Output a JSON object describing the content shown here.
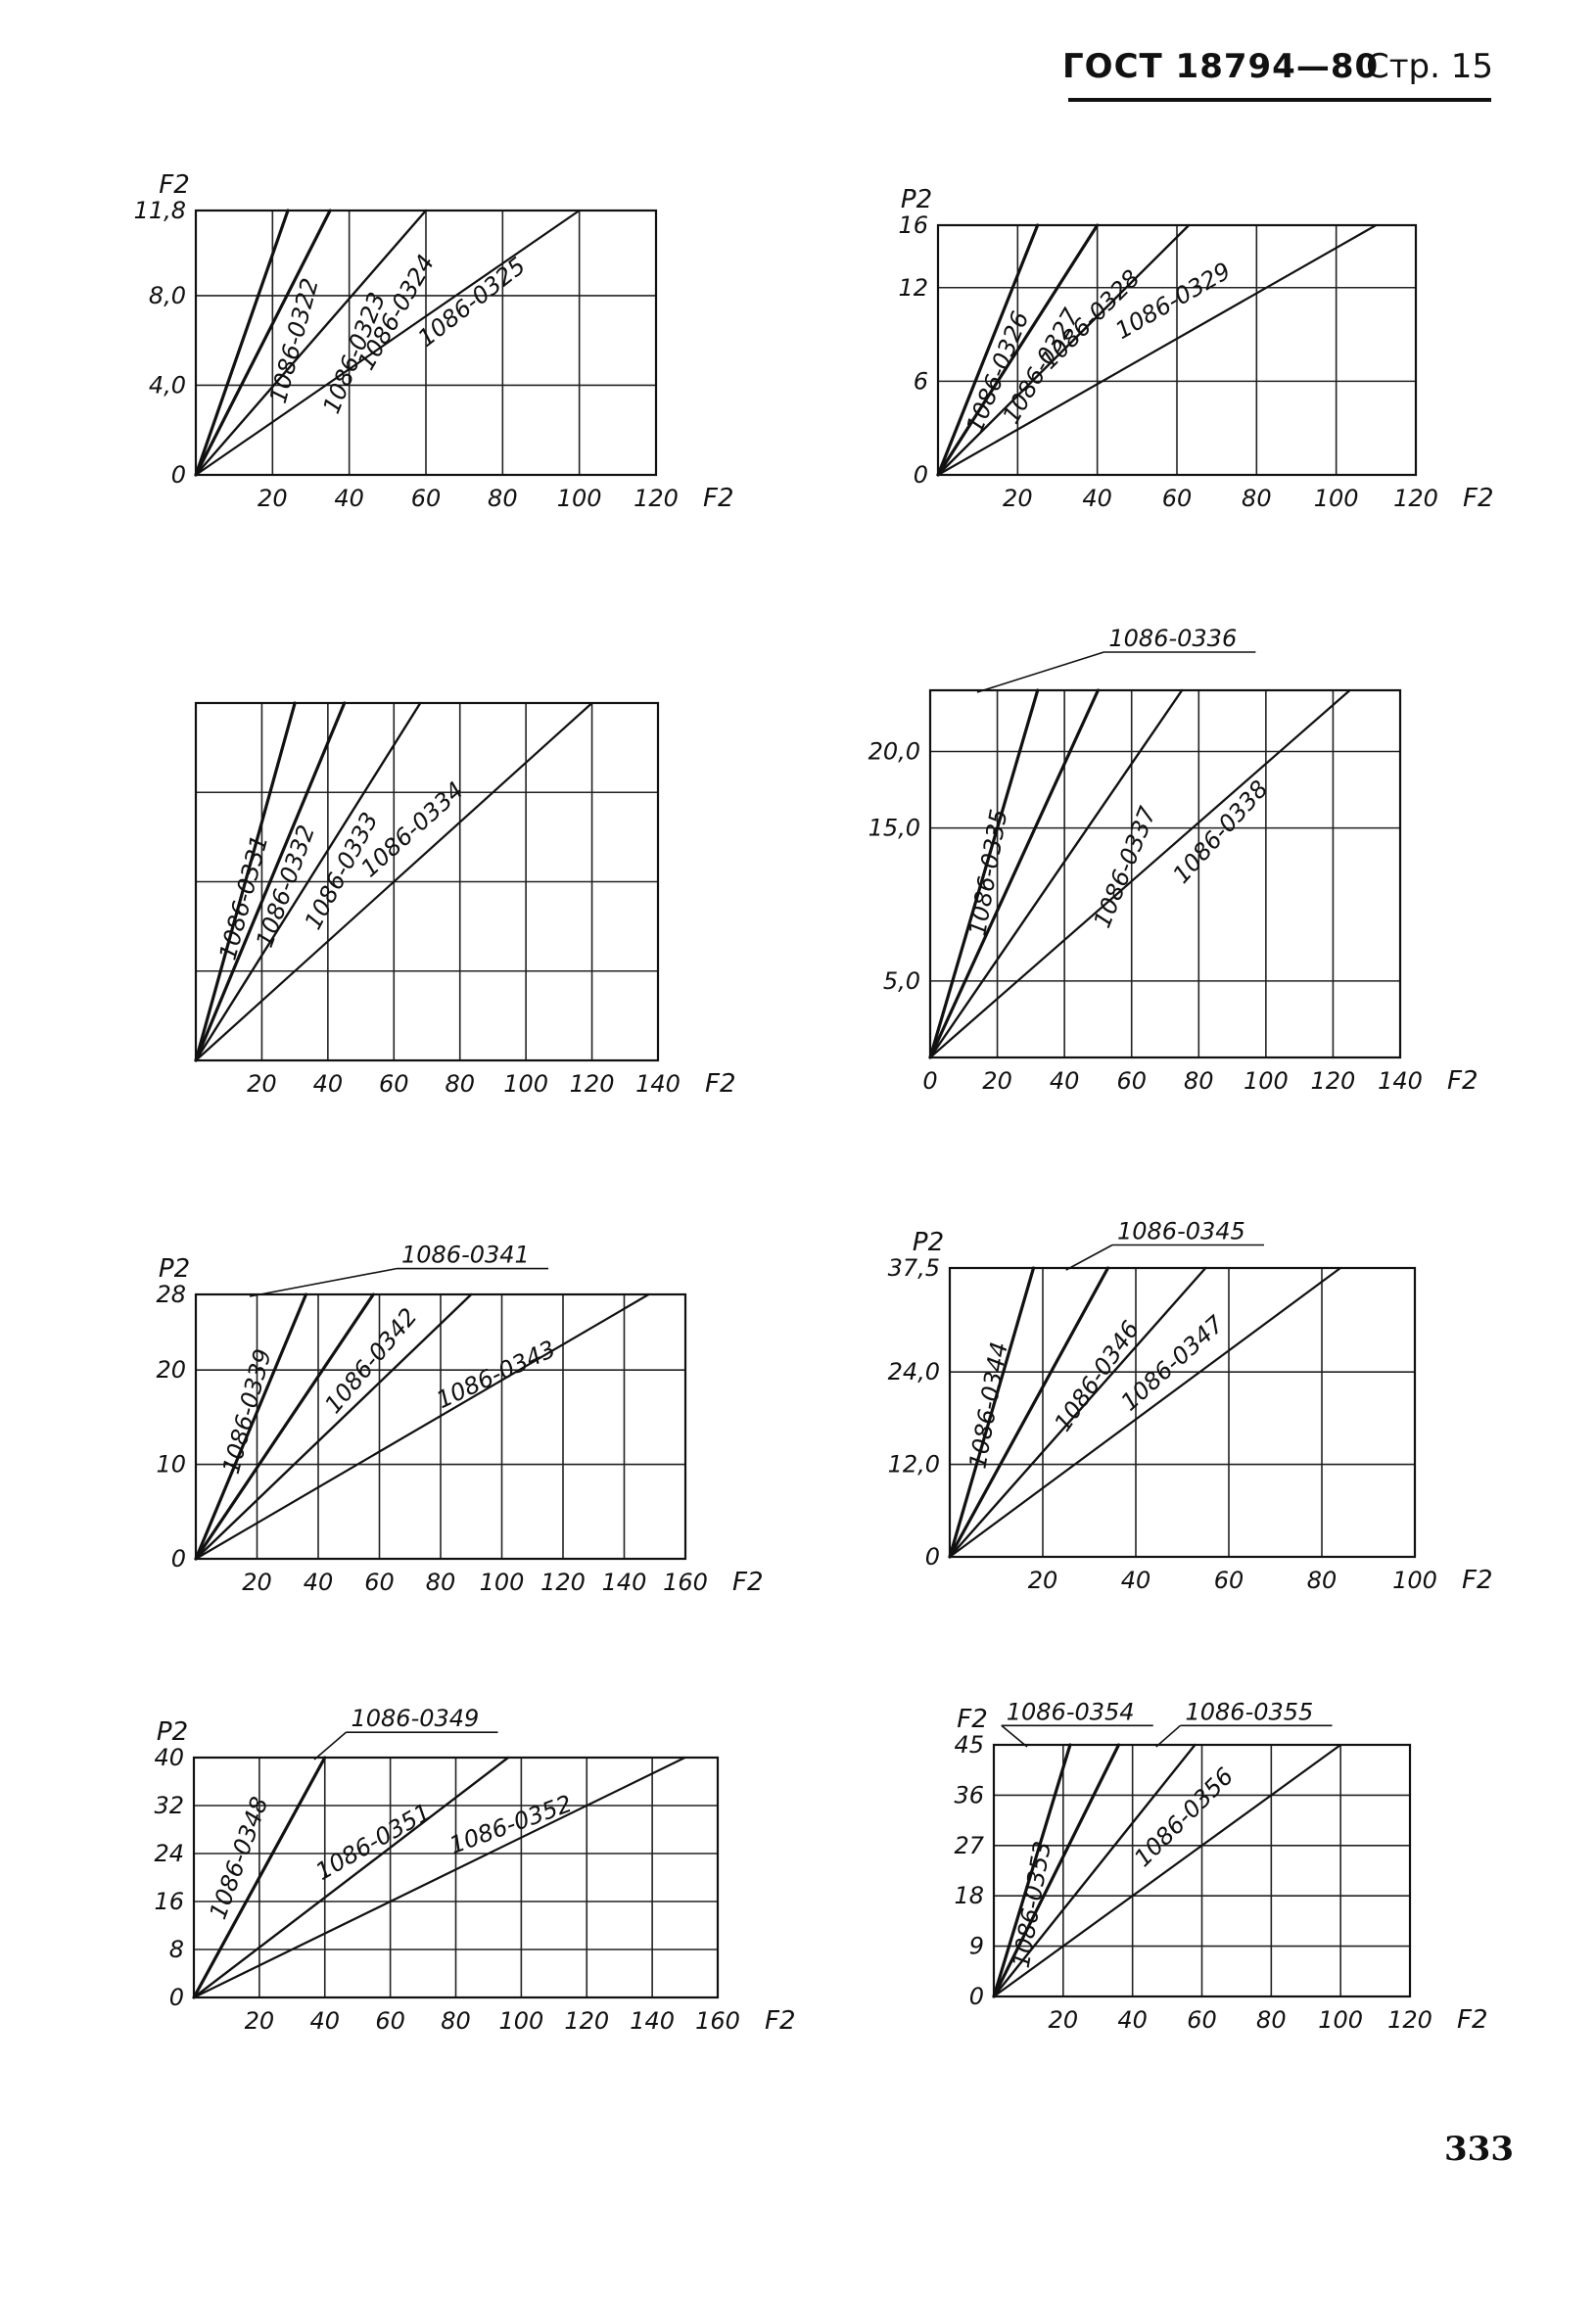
{
  "header": {
    "title": "ГОСТ 18794—80",
    "page": "Стр. 15"
  },
  "page_number": "333",
  "chart_data": [
    {
      "type": "line",
      "ylabel": "F2",
      "xlabel": "F2",
      "xlim": [
        0,
        120
      ],
      "ylim": [
        0,
        11.8
      ],
      "x_ticks": [
        20,
        40,
        60,
        80,
        100,
        120
      ],
      "x_tick_labels": [
        "20",
        "40",
        "60",
        "80",
        "100",
        "120"
      ],
      "y_ticks": [
        0,
        4.0,
        8.0,
        11.8
      ],
      "y_tick_labels": [
        "0",
        "4,0",
        "8,0",
        "11,8"
      ],
      "grid": true,
      "series": [
        {
          "name": "1086-0322",
          "x": [
            0,
            24
          ],
          "y": [
            0,
            11.8
          ]
        },
        {
          "name": "1086-0323",
          "x": [
            0,
            35
          ],
          "y": [
            0,
            11.8
          ]
        },
        {
          "name": "1086-0324",
          "x": [
            0,
            60
          ],
          "y": [
            0,
            11.8
          ]
        },
        {
          "name": "1086-0325",
          "x": [
            0,
            100
          ],
          "y": [
            0,
            11.8
          ]
        }
      ]
    },
    {
      "type": "line",
      "ylabel": "P2",
      "xlabel": "F2",
      "xlim": [
        0,
        120
      ],
      "ylim": [
        0,
        16
      ],
      "x_ticks": [
        20,
        40,
        60,
        80,
        100,
        120
      ],
      "x_tick_labels": [
        "20",
        "40",
        "60",
        "80",
        "100",
        "120"
      ],
      "y_ticks": [
        0,
        6,
        12,
        16
      ],
      "y_tick_labels": [
        "0",
        "6",
        "12",
        "16"
      ],
      "grid": true,
      "series": [
        {
          "name": "1086-0326",
          "x": [
            0,
            25
          ],
          "y": [
            0,
            16
          ]
        },
        {
          "name": "1086-0327",
          "x": [
            0,
            40
          ],
          "y": [
            0,
            16
          ]
        },
        {
          "name": "1086-0328",
          "x": [
            0,
            63
          ],
          "y": [
            0,
            16
          ]
        },
        {
          "name": "1086-0329",
          "x": [
            0,
            110
          ],
          "y": [
            0,
            16
          ]
        }
      ]
    },
    {
      "type": "line",
      "ylabel": "",
      "xlabel": "F2",
      "xlim": [
        0,
        140
      ],
      "ylim": [
        0,
        24
      ],
      "x_ticks": [
        20,
        40,
        60,
        80,
        100,
        120,
        140
      ],
      "x_tick_labels": [
        "20",
        "40",
        "60",
        "80",
        "100",
        "120",
        "140"
      ],
      "y_ticks": [],
      "y_tick_labels": [],
      "grid": true,
      "series": [
        {
          "name": "1086-0331",
          "x": [
            0,
            30
          ],
          "y": [
            0,
            24
          ]
        },
        {
          "name": "1086-0332",
          "x": [
            0,
            45
          ],
          "y": [
            0,
            24
          ]
        },
        {
          "name": "1086-0333",
          "x": [
            0,
            68
          ],
          "y": [
            0,
            24
          ]
        },
        {
          "name": "1086-0334",
          "x": [
            0,
            120
          ],
          "y": [
            0,
            24
          ]
        }
      ]
    },
    {
      "type": "line",
      "ylabel": "",
      "xlabel": "F2",
      "xlim": [
        0,
        140
      ],
      "ylim": [
        0,
        24
      ],
      "x_ticks": [
        0,
        20,
        40,
        60,
        80,
        100,
        120,
        140
      ],
      "x_tick_labels": [
        "0",
        "20",
        "40",
        "60",
        "80",
        "100",
        "120",
        "140"
      ],
      "y_ticks": [
        5.0,
        15.0,
        20.0
      ],
      "y_tick_labels": [
        "5,0",
        "15,0",
        "20,0"
      ],
      "grid": true,
      "series": [
        {
          "name": "1086-0335",
          "x": [
            0,
            32
          ],
          "y": [
            0,
            24
          ]
        },
        {
          "name": "",
          "x": [
            0,
            50
          ],
          "y": [
            0,
            24
          ]
        },
        {
          "name": "1086-0337",
          "x": [
            0,
            75
          ],
          "y": [
            0,
            24
          ]
        },
        {
          "name": "1086-0338",
          "x": [
            0,
            125
          ],
          "y": [
            0,
            24
          ]
        }
      ],
      "annotations": [
        "1086-0336"
      ]
    },
    {
      "type": "line",
      "ylabel": "P2",
      "xlabel": "F2",
      "xlim": [
        0,
        160
      ],
      "ylim": [
        0,
        28
      ],
      "x_ticks": [
        20,
        40,
        60,
        80,
        100,
        120,
        140,
        160
      ],
      "x_tick_labels": [
        "20",
        "40",
        "60",
        "80",
        "100",
        "120",
        "140",
        "160"
      ],
      "y_ticks": [
        0,
        10,
        20,
        28
      ],
      "y_tick_labels": [
        "0",
        "10",
        "20",
        "28"
      ],
      "grid": true,
      "series": [
        {
          "name": "1086-0339",
          "x": [
            0,
            36
          ],
          "y": [
            0,
            28
          ]
        },
        {
          "name": "",
          "x": [
            0,
            58
          ],
          "y": [
            0,
            28
          ]
        },
        {
          "name": "1086-0342",
          "x": [
            0,
            90
          ],
          "y": [
            0,
            28
          ]
        },
        {
          "name": "1086-0343",
          "x": [
            0,
            148
          ],
          "y": [
            0,
            28
          ]
        }
      ],
      "annotations": [
        "1086-0341"
      ]
    },
    {
      "type": "line",
      "ylabel": "P2",
      "xlabel": "F2",
      "xlim": [
        0,
        100
      ],
      "ylim": [
        0,
        37.5
      ],
      "x_ticks": [
        20,
        40,
        60,
        80,
        100
      ],
      "x_tick_labels": [
        "20",
        "40",
        "60",
        "80",
        "100"
      ],
      "y_ticks": [
        0,
        12.0,
        24.0,
        37.5
      ],
      "y_tick_labels": [
        "0",
        "12,0",
        "24,0",
        "37,5"
      ],
      "grid": true,
      "series": [
        {
          "name": "1086-0344",
          "x": [
            0,
            18
          ],
          "y": [
            0,
            37.5
          ]
        },
        {
          "name": "",
          "x": [
            0,
            34
          ],
          "y": [
            0,
            37.5
          ]
        },
        {
          "name": "1086-0346",
          "x": [
            0,
            55
          ],
          "y": [
            0,
            37.5
          ]
        },
        {
          "name": "1086-0347",
          "x": [
            0,
            84
          ],
          "y": [
            0,
            37.5
          ]
        }
      ],
      "annotations": [
        "1086-0345"
      ]
    },
    {
      "type": "line",
      "ylabel": "P2",
      "xlabel": "F2",
      "xlim": [
        0,
        160
      ],
      "ylim": [
        0,
        40
      ],
      "x_ticks": [
        20,
        40,
        60,
        80,
        100,
        120,
        140,
        160
      ],
      "x_tick_labels": [
        "20",
        "40",
        "60",
        "80",
        "100",
        "120",
        "140",
        "160"
      ],
      "y_ticks": [
        0,
        8,
        16,
        24,
        32,
        40
      ],
      "y_tick_labels": [
        "0",
        "8",
        "16",
        "24",
        "32",
        "40"
      ],
      "grid": true,
      "series": [
        {
          "name": "1086-0348",
          "x": [
            0,
            40
          ],
          "y": [
            0,
            40
          ]
        },
        {
          "name": "1086-0351",
          "x": [
            0,
            96
          ],
          "y": [
            0,
            40
          ]
        },
        {
          "name": "1086-0352",
          "x": [
            0,
            150
          ],
          "y": [
            0,
            40
          ]
        }
      ],
      "annotations": [
        "1086-0349"
      ]
    },
    {
      "type": "line",
      "ylabel": "F2",
      "xlabel": "F2",
      "xlim": [
        0,
        120
      ],
      "ylim": [
        0,
        45
      ],
      "x_ticks": [
        20,
        40,
        60,
        80,
        100,
        120
      ],
      "x_tick_labels": [
        "20",
        "40",
        "60",
        "80",
        "100",
        "120"
      ],
      "y_ticks": [
        0,
        9,
        18,
        27,
        36,
        45
      ],
      "y_tick_labels": [
        "0",
        "9",
        "18",
        "27",
        "36",
        "45"
      ],
      "grid": true,
      "series": [
        {
          "name": "1086-0353",
          "x": [
            0,
            22
          ],
          "y": [
            0,
            45
          ]
        },
        {
          "name": "",
          "x": [
            0,
            36
          ],
          "y": [
            0,
            45
          ]
        },
        {
          "name": "",
          "x": [
            0,
            58
          ],
          "y": [
            0,
            45
          ]
        },
        {
          "name": "1086-0356",
          "x": [
            0,
            100
          ],
          "y": [
            0,
            45
          ]
        }
      ],
      "annotations": [
        "1086-0354",
        "1086-0355"
      ]
    }
  ]
}
